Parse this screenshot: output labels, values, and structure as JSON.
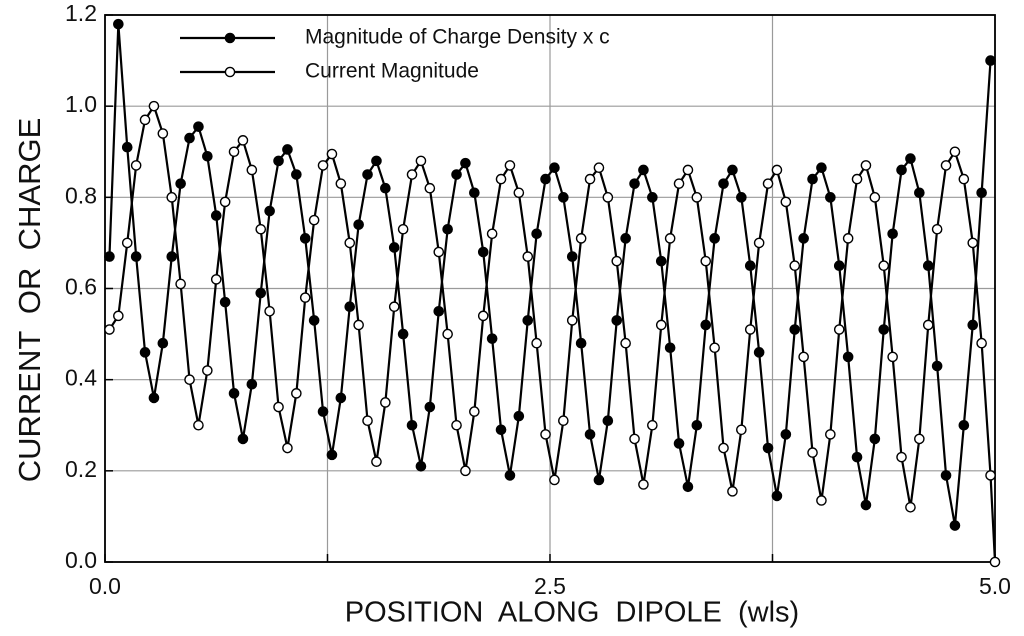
{
  "chart_data": {
    "type": "line",
    "xlabel": "POSITION  ALONG  DIPOLE  (wls)",
    "ylabel": "CURRENT  OR  CHARGE",
    "x": [
      0.025,
      0.075,
      0.125,
      0.175,
      0.225,
      0.275,
      0.325,
      0.375,
      0.425,
      0.475,
      0.525,
      0.575,
      0.625,
      0.675,
      0.725,
      0.775,
      0.825,
      0.875,
      0.925,
      0.975,
      1.025,
      1.075,
      1.125,
      1.175,
      1.225,
      1.275,
      1.325,
      1.375,
      1.425,
      1.475,
      1.525,
      1.575,
      1.625,
      1.675,
      1.725,
      1.775,
      1.825,
      1.875,
      1.925,
      1.975,
      2.025,
      2.075,
      2.125,
      2.175,
      2.225,
      2.275,
      2.325,
      2.375,
      2.425,
      2.475,
      2.525,
      2.575,
      2.625,
      2.675,
      2.725,
      2.775,
      2.825,
      2.875,
      2.925,
      2.975,
      3.025,
      3.075,
      3.125,
      3.175,
      3.225,
      3.275,
      3.325,
      3.375,
      3.425,
      3.475,
      3.525,
      3.575,
      3.625,
      3.675,
      3.725,
      3.775,
      3.825,
      3.875,
      3.925,
      3.975,
      4.025,
      4.075,
      4.125,
      4.175,
      4.225,
      4.275,
      4.325,
      4.375,
      4.425,
      4.475,
      4.525,
      4.575,
      4.625,
      4.675,
      4.725,
      4.775,
      4.825,
      4.875,
      4.925,
      4.975,
      5.0
    ],
    "series": [
      {
        "name": "Magnitude of Charge Density x c",
        "color": "#000000",
        "marker_fill": "#000000",
        "values": [
          0.67,
          1.18,
          0.91,
          0.67,
          0.46,
          0.36,
          0.48,
          0.67,
          0.83,
          0.93,
          0.955,
          0.89,
          0.76,
          0.57,
          0.37,
          0.27,
          0.39,
          0.59,
          0.77,
          0.88,
          0.905,
          0.85,
          0.71,
          0.53,
          0.33,
          0.235,
          0.36,
          0.56,
          0.74,
          0.85,
          0.88,
          0.82,
          0.69,
          0.5,
          0.3,
          0.21,
          0.34,
          0.55,
          0.73,
          0.85,
          0.875,
          0.81,
          0.68,
          0.49,
          0.29,
          0.19,
          0.32,
          0.53,
          0.72,
          0.84,
          0.865,
          0.8,
          0.67,
          0.48,
          0.28,
          0.18,
          0.31,
          0.53,
          0.71,
          0.83,
          0.86,
          0.8,
          0.66,
          0.47,
          0.26,
          0.165,
          0.3,
          0.52,
          0.71,
          0.83,
          0.86,
          0.8,
          0.65,
          0.46,
          0.25,
          0.145,
          0.28,
          0.51,
          0.71,
          0.84,
          0.865,
          0.8,
          0.65,
          0.45,
          0.23,
          0.125,
          0.27,
          0.51,
          0.72,
          0.86,
          0.885,
          0.81,
          0.65,
          0.43,
          0.19,
          0.08,
          0.3,
          0.52,
          0.81,
          1.1,
          null
        ]
      },
      {
        "name": "Current Magnitude",
        "color": "#000000",
        "marker_fill": "#ffffff",
        "values": [
          0.51,
          0.54,
          0.7,
          0.87,
          0.97,
          1.0,
          0.94,
          0.8,
          0.61,
          0.4,
          0.3,
          0.42,
          0.62,
          0.79,
          0.9,
          0.925,
          0.86,
          0.73,
          0.55,
          0.34,
          0.25,
          0.37,
          0.58,
          0.75,
          0.87,
          0.895,
          0.83,
          0.7,
          0.52,
          0.31,
          0.22,
          0.35,
          0.56,
          0.73,
          0.85,
          0.88,
          0.82,
          0.68,
          0.5,
          0.3,
          0.2,
          0.33,
          0.54,
          0.72,
          0.84,
          0.87,
          0.81,
          0.67,
          0.48,
          0.28,
          0.18,
          0.31,
          0.53,
          0.71,
          0.84,
          0.865,
          0.8,
          0.66,
          0.48,
          0.27,
          0.17,
          0.3,
          0.52,
          0.71,
          0.83,
          0.86,
          0.8,
          0.66,
          0.47,
          0.25,
          0.155,
          0.29,
          0.51,
          0.7,
          0.83,
          0.86,
          0.79,
          0.65,
          0.45,
          0.24,
          0.135,
          0.28,
          0.51,
          0.71,
          0.84,
          0.87,
          0.8,
          0.65,
          0.45,
          0.23,
          0.12,
          0.27,
          0.52,
          0.73,
          0.87,
          0.9,
          0.84,
          0.7,
          0.48,
          0.19,
          0.0
        ]
      }
    ],
    "xlim": [
      0,
      5
    ],
    "ylim": [
      0,
      1.2
    ],
    "xticks": [
      {
        "value": 0,
        "label": "0.0"
      },
      {
        "value": 1.25,
        "label": null
      },
      2.5,
      {
        "value": 3.75,
        "label": null
      },
      {
        "value": 5,
        "label": "5.0"
      }
    ],
    "yticks": [
      {
        "value": 0,
        "label": "0.0"
      },
      0.2,
      0.4,
      0.6,
      0.8,
      {
        "value": 1,
        "label": "1.0"
      },
      1.2
    ],
    "grid": true,
    "legend": "upper left"
  }
}
